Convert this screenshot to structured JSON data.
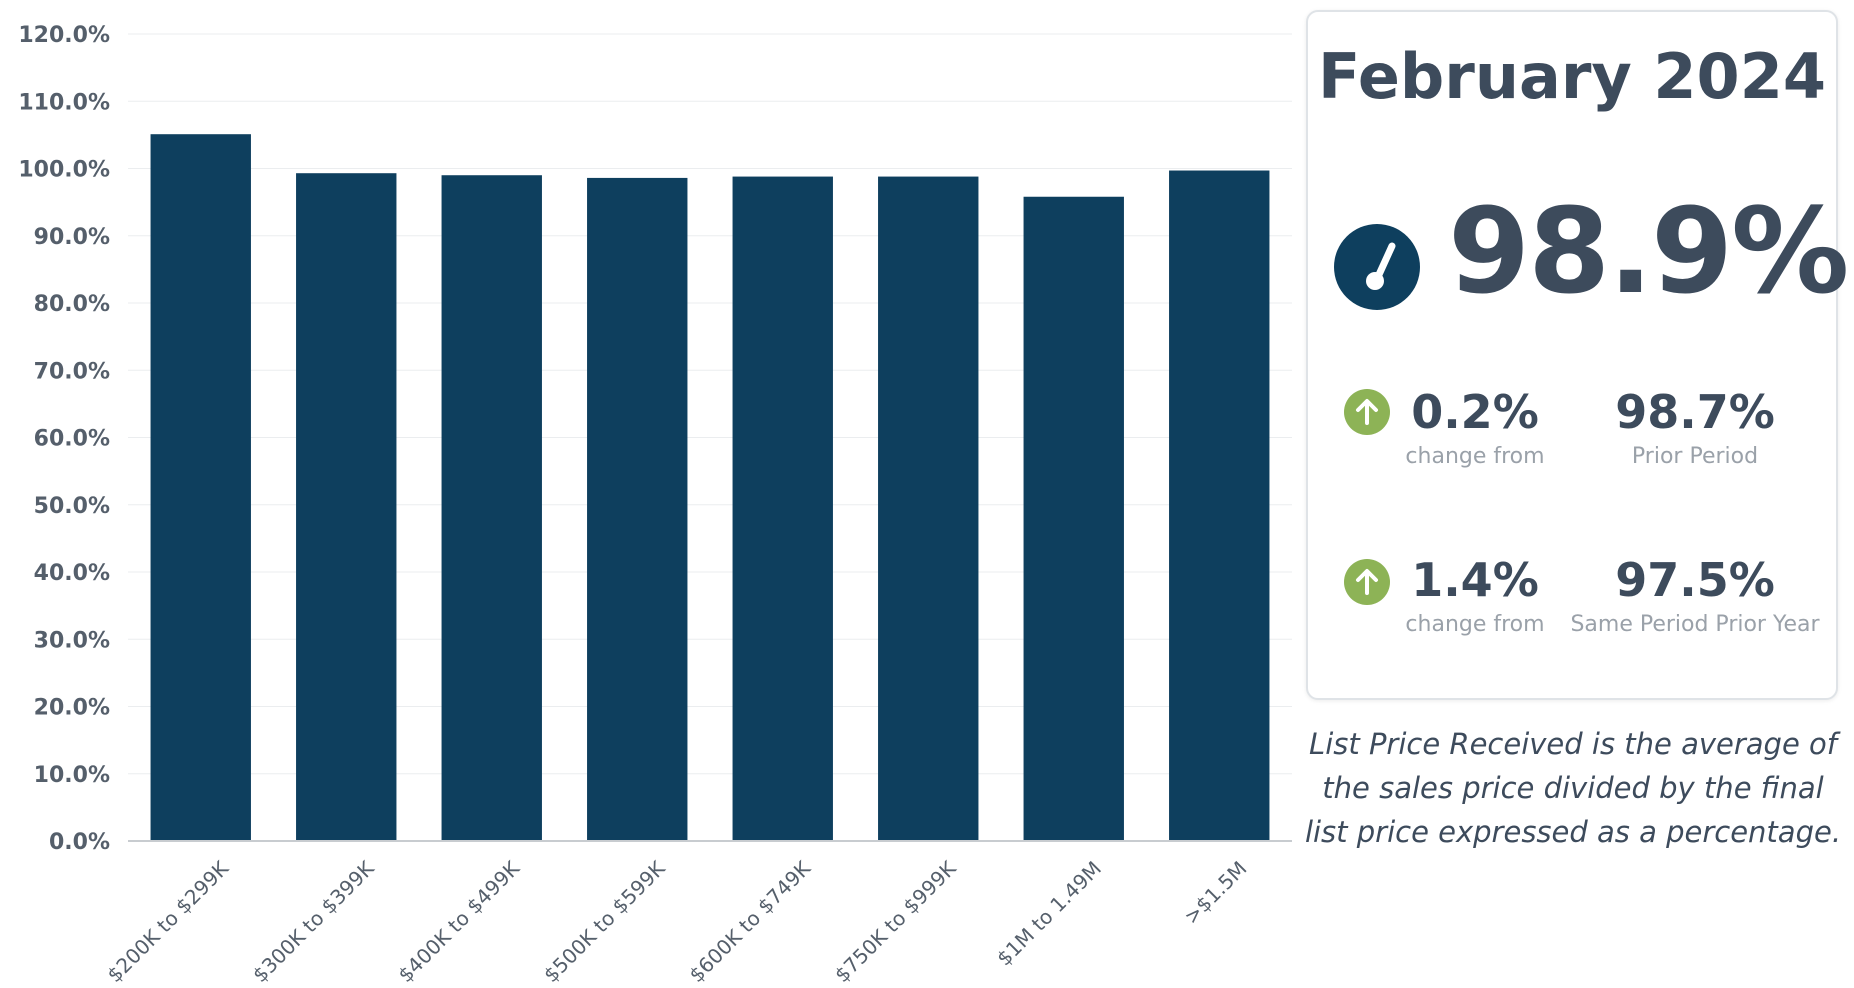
{
  "chart_data": {
    "type": "bar",
    "categories": [
      "$200K to $299K",
      "$300K to $399K",
      "$400K to $499K",
      "$500K to $599K",
      "$600K to $749K",
      "$750K to $999K",
      "$1M to 1.49M",
      ">$1.5M"
    ],
    "values": [
      105.1,
      99.3,
      99.0,
      98.6,
      98.8,
      98.8,
      95.8,
      99.7
    ],
    "ylim": [
      0,
      120
    ],
    "yticks": [
      "0.0%",
      "10.0%",
      "20.0%",
      "30.0%",
      "40.0%",
      "50.0%",
      "60.0%",
      "70.0%",
      "80.0%",
      "90.0%",
      "100.0%",
      "110.0%",
      "120.0%"
    ],
    "bar_color": "#0e3f5e",
    "grid": true
  },
  "card": {
    "title": "February 2024",
    "headline_value": "98.9%",
    "gauge_icon": "gauge-icon",
    "gauge_color": "#0e3f5e",
    "arrow_color": "#8db356",
    "rows": [
      {
        "icon": "arrow-up-icon",
        "change": "0.2%",
        "change_label": "change from",
        "compare_value": "98.7%",
        "compare_label": "Prior Period"
      },
      {
        "icon": "arrow-up-icon",
        "change": "1.4%",
        "change_label": "change from",
        "compare_value": "97.5%",
        "compare_label": "Same Period Prior Year"
      }
    ]
  },
  "description": "List Price Received is the average of the sales price divided by the final list price expressed as a percentage."
}
